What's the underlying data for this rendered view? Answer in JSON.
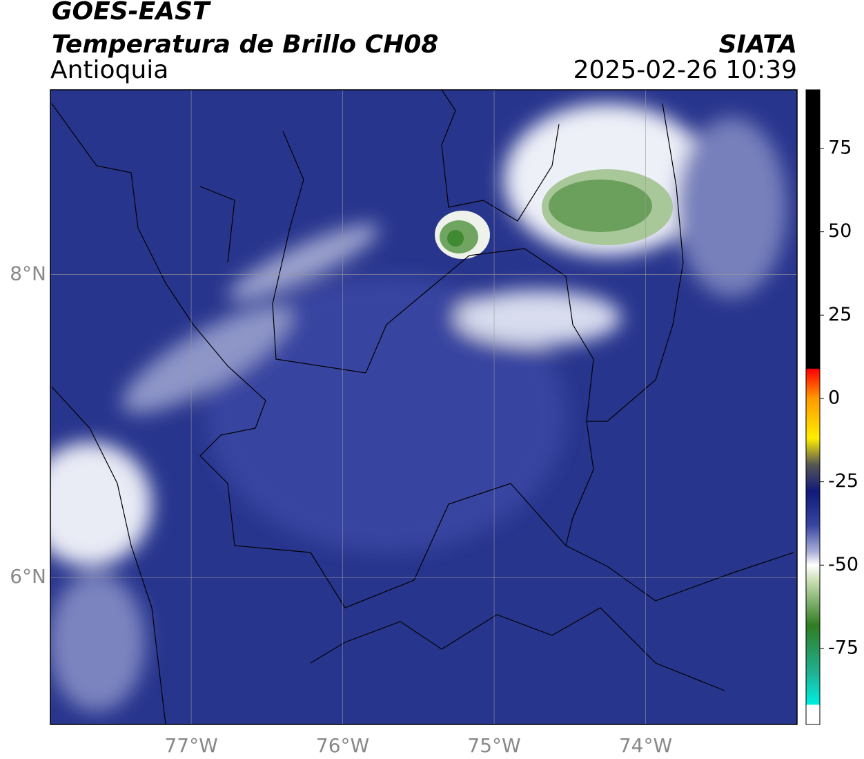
{
  "header": {
    "title": "GOES-EAST",
    "subtitle": "Temperatura de Brillo CH08",
    "region": "Antioquia",
    "source": "SIATA",
    "datetime": "2025-02-26 10:39"
  },
  "map": {
    "xlim": [
      -77.93,
      -73.0
    ],
    "ylim": [
      5.03,
      9.22
    ],
    "xticks": [
      {
        "value": -77,
        "label": "77°W"
      },
      {
        "value": -76,
        "label": "76°W"
      },
      {
        "value": -75,
        "label": "75°W"
      },
      {
        "value": -74,
        "label": "74°W"
      }
    ],
    "yticks": [
      {
        "value": 6,
        "label": "6°N"
      },
      {
        "value": 8,
        "label": "8°N"
      }
    ],
    "grid": true
  },
  "colorbar": {
    "lim": [
      -97.8,
      92.6
    ],
    "ticks": [
      -75,
      -50,
      -25,
      0,
      25,
      50,
      75
    ]
  }
}
